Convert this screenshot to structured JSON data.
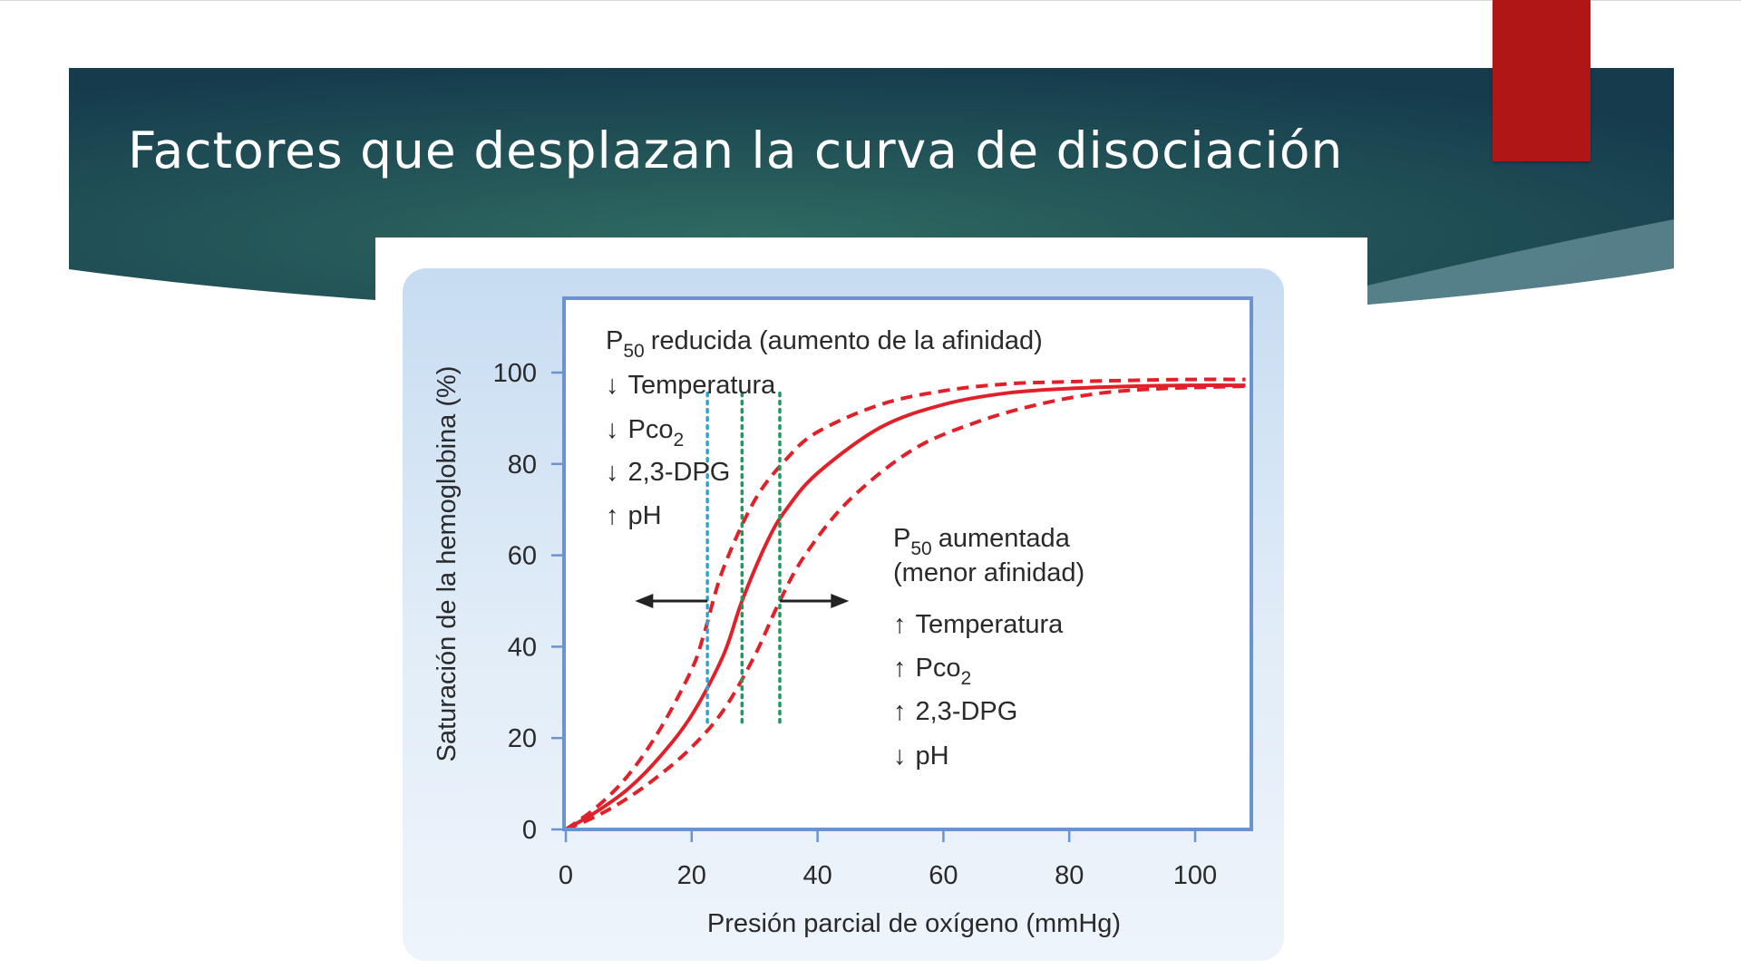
{
  "slide": {
    "title": "Factores que desplazan la curva de disociación",
    "colors": {
      "banner_dark": "#153b4d",
      "banner_mid": "#2f6a61",
      "accent": "#b01616"
    }
  },
  "chart_data": {
    "type": "line",
    "title": "",
    "xlabel": "Presión parcial de oxígeno (mmHg)",
    "ylabel": "Saturación de la hemoglobina (%)",
    "xlim": [
      0,
      109
    ],
    "ylim": [
      0,
      100
    ],
    "xticks": [
      "0",
      "20",
      "40",
      "60",
      "80",
      "100"
    ],
    "yticks": [
      "0",
      "20",
      "40",
      "60",
      "80",
      "100"
    ],
    "grid": false,
    "series": [
      {
        "style": "dashed",
        "color": "#e0212a",
        "points": [
          [
            0,
            0
          ],
          [
            5,
            5
          ],
          [
            10,
            12
          ],
          [
            15,
            22
          ],
          [
            20,
            35
          ],
          [
            22,
            43
          ],
          [
            25,
            57
          ],
          [
            30,
            72
          ],
          [
            35,
            81
          ],
          [
            40,
            87
          ],
          [
            50,
            93
          ],
          [
            60,
            96
          ],
          [
            70,
            97.5
          ],
          [
            80,
            98
          ],
          [
            90,
            98.3
          ],
          [
            100,
            98.5
          ],
          [
            108,
            98.5
          ]
        ]
      },
      {
        "style": "solid",
        "color": "#e0212a",
        "points": [
          [
            0,
            0
          ],
          [
            5,
            4
          ],
          [
            10,
            9
          ],
          [
            15,
            16
          ],
          [
            20,
            25
          ],
          [
            25,
            38
          ],
          [
            28,
            50
          ],
          [
            32,
            63
          ],
          [
            35,
            70
          ],
          [
            40,
            78
          ],
          [
            50,
            88
          ],
          [
            60,
            93
          ],
          [
            70,
            95.5
          ],
          [
            80,
            96.5
          ],
          [
            90,
            97
          ],
          [
            100,
            97.2
          ],
          [
            108,
            97.2
          ]
        ]
      },
      {
        "style": "dashed",
        "color": "#e0212a",
        "points": [
          [
            0,
            0
          ],
          [
            5,
            3
          ],
          [
            10,
            7
          ],
          [
            15,
            12
          ],
          [
            20,
            18
          ],
          [
            25,
            26
          ],
          [
            30,
            38
          ],
          [
            34,
            50
          ],
          [
            38,
            60
          ],
          [
            45,
            72
          ],
          [
            55,
            83
          ],
          [
            65,
            89
          ],
          [
            75,
            93
          ],
          [
            85,
            95.5
          ],
          [
            95,
            96.5
          ],
          [
            108,
            97
          ]
        ]
      }
    ],
    "markers": [
      {
        "x": 22.5,
        "color": "#2aa6d6",
        "style": "dotted"
      },
      {
        "x": 28,
        "color": "#1f9a5c",
        "style": "dotted"
      },
      {
        "x": 34,
        "color": "#1f9a5c",
        "style": "dotted"
      }
    ],
    "shift_arrows": {
      "y": 50,
      "left": {
        "from": 22.5,
        "to": 11
      },
      "right": {
        "from": 34,
        "to": 45
      }
    },
    "annotations": {
      "left": {
        "title_p": "P",
        "title_sub": "50",
        "title_rest": "reducida (aumento de la afinidad)",
        "items": [
          {
            "arrow": "↓",
            "text": "Temperatura",
            "sub": ""
          },
          {
            "arrow": "↓",
            "text": "Pco",
            "sub": "2"
          },
          {
            "arrow": "↓",
            "text": "2,3-DPG",
            "sub": ""
          },
          {
            "arrow": "↑",
            "text": "pH",
            "sub": ""
          }
        ]
      },
      "right": {
        "title_p": "P",
        "title_sub": "50",
        "title_rest": "aumentada",
        "title_line2": "(menor afinidad)",
        "items": [
          {
            "arrow": "↑",
            "text": "Temperatura",
            "sub": ""
          },
          {
            "arrow": "↑",
            "text": "Pco",
            "sub": "2"
          },
          {
            "arrow": "↑",
            "text": "2,3-DPG",
            "sub": ""
          },
          {
            "arrow": "↓",
            "text": "pH",
            "sub": ""
          }
        ]
      }
    }
  }
}
